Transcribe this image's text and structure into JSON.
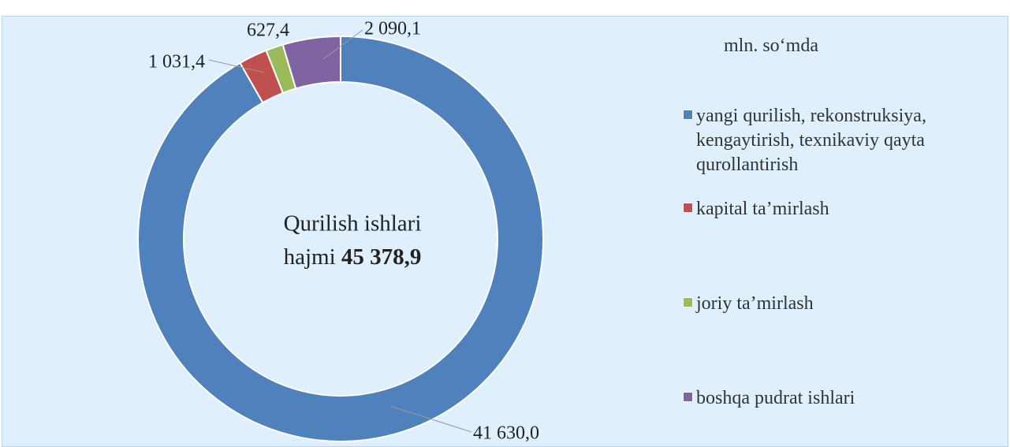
{
  "chart_data": {
    "type": "donut",
    "unit": "mln. so‘mda",
    "center_text": [
      "Qurilish ishlari",
      "hajmi"
    ],
    "total": {
      "value": 45378.9,
      "label": "45 378,9"
    },
    "categories": [
      "yangi qurilish, rekonstruksiya, kengaytirish, texnikaviy qayta qurollantirish",
      "kapital ta’mirlash",
      "joriy ta’mirlash",
      "boshqa pudrat ishlari"
    ],
    "values": [
      41630.0,
      1031.4,
      627.4,
      2090.1
    ],
    "value_labels": [
      "41 630,0",
      "1 031,4",
      "627,4",
      "2 090,1"
    ],
    "colors": [
      "#4f81bd",
      "#c0504d",
      "#9bbb59",
      "#8064a2"
    ],
    "legend": "right"
  }
}
